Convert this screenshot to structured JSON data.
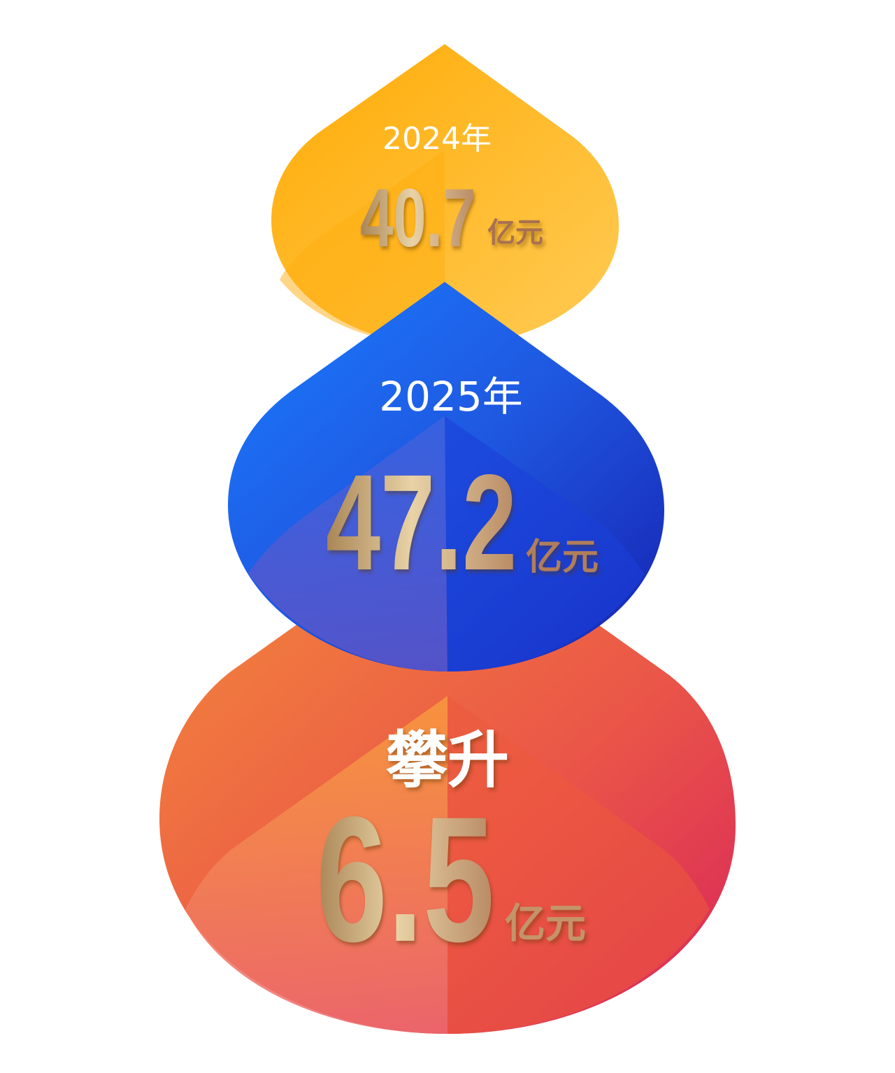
{
  "blocks": [
    {
      "label": "2024年",
      "value": "40.7",
      "unit": "亿元",
      "color_top": "#ffad0a",
      "color_bottom": "#ffc84a"
    },
    {
      "label": "2025年",
      "value": "47.2",
      "unit": "亿元",
      "color_top": "#1a7bff",
      "color_bottom": "#1a2bbf"
    },
    {
      "label": "攀升",
      "value": "6.5",
      "unit": "亿元",
      "color_top": "#f27a3a",
      "color_bottom": "#de2f5a"
    }
  ],
  "number_gold": [
    "#b08a5c",
    "#e6cfa3",
    "#b48a66"
  ]
}
